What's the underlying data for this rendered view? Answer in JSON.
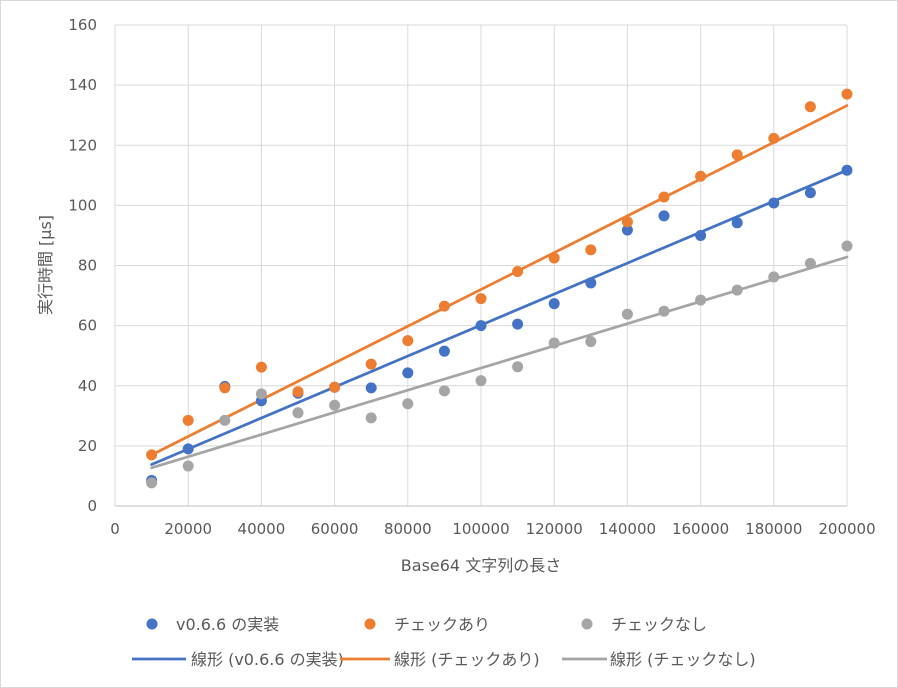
{
  "chart_data": {
    "type": "scatter",
    "title": "",
    "xlabel": "Base64 文字列の長さ",
    "ylabel": "実行時間 [μs]",
    "xlim": [
      0,
      200000
    ],
    "ylim": [
      0,
      160
    ],
    "x_ticks": [
      0,
      20000,
      40000,
      60000,
      80000,
      100000,
      120000,
      140000,
      160000,
      180000,
      200000
    ],
    "y_ticks": [
      0,
      20,
      40,
      60,
      80,
      100,
      120,
      140,
      160
    ],
    "grid": true,
    "legend_position": "bottom",
    "x": [
      10000,
      20000,
      30000,
      40000,
      50000,
      60000,
      70000,
      80000,
      90000,
      100000,
      110000,
      120000,
      130000,
      140000,
      150000,
      160000,
      170000,
      180000,
      190000,
      200000
    ],
    "series": [
      {
        "name": "v0.6.6 の実装",
        "color": "#4472c4",
        "values": [
          8.5,
          19,
          39.8,
          35,
          37.5,
          39.5,
          39.3,
          44.3,
          51.5,
          60,
          60.5,
          67.3,
          74.2,
          91.8,
          96.5,
          90,
          94.2,
          100.8,
          104.2,
          111.7
        ]
      },
      {
        "name": "チェックあり",
        "color": "#ed7d31",
        "values": [
          17,
          28.5,
          39.3,
          46.2,
          38,
          39.5,
          47.2,
          55,
          66.5,
          69,
          78,
          82.5,
          85.2,
          94.5,
          102.8,
          109.7,
          116.8,
          122.3,
          132.8,
          137
        ]
      },
      {
        "name": "チェックなし",
        "color": "#a5a5a5",
        "values": [
          7.7,
          13.3,
          28.5,
          37.3,
          31,
          33.5,
          29.3,
          34,
          38.3,
          41.7,
          46.3,
          54.2,
          54.7,
          63.8,
          64.8,
          68.5,
          71.8,
          76.2,
          80.7,
          86.5
        ]
      }
    ],
    "trendlines": [
      {
        "name": "線形 (v0.6.6 の実装)",
        "color": "#4472c4",
        "x": [
          10000,
          200000
        ],
        "y": [
          13.8,
          111.7
        ]
      },
      {
        "name": "線形 (チェックあり)",
        "color": "#ed7d31",
        "x": [
          10000,
          200000
        ],
        "y": [
          17.0,
          133.2
        ]
      },
      {
        "name": "線形 (チェックなし)",
        "color": "#a5a5a5",
        "x": [
          10000,
          200000
        ],
        "y": [
          12.7,
          82.8
        ]
      }
    ]
  }
}
